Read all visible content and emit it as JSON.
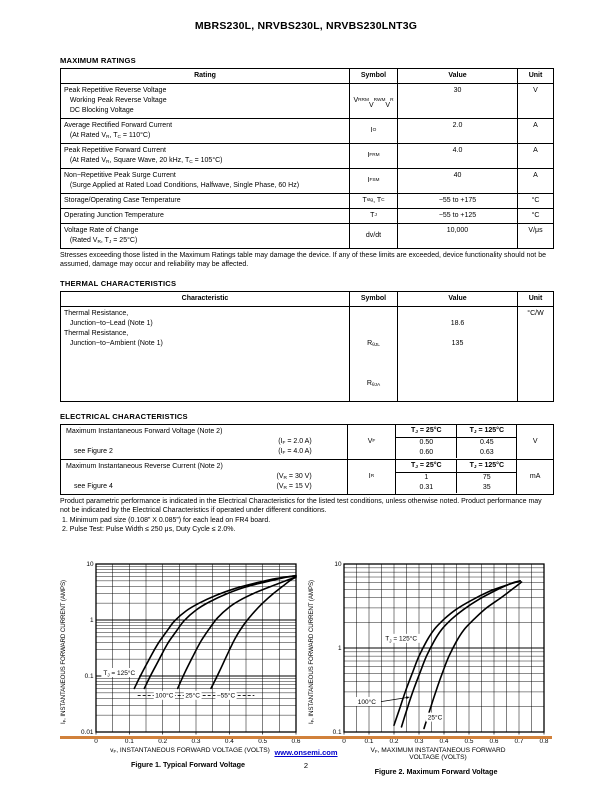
{
  "page": {
    "title": "MBRS230L, NRVBS230L, NRVBS230LNT3G"
  },
  "colors": {
    "footer_rule": "#d1813b",
    "link": "#0000cc"
  },
  "sections": {
    "max_ratings": {
      "heading": "MAXIMUM RATINGS",
      "headers": [
        "Rating",
        "Symbol",
        "Value",
        "Unit"
      ],
      "rows": [
        {
          "rating": "Peak Repetitive Reverse Voltage\n   Working Peak Reverse Voltage\n   DC Blocking Voltage",
          "symbol": "V~RRM~\nV~RWM~\nV~R~",
          "value": "30",
          "unit": "V"
        },
        {
          "rating": "Average Rectified Forward Current\n   (At Rated V~R~, T~C~ = 110°C)",
          "symbol": "I~O~",
          "value": "2.0",
          "unit": "A"
        },
        {
          "rating": "Peak Repetitive Forward Current\n   (At Rated V~R~, Square Wave, 20 kHz, T~C~ = 105°C)",
          "symbol": "I~FRM~",
          "value": "4.0",
          "unit": "A"
        },
        {
          "rating": "Non−Repetitive Peak Surge Current\n   (Surge Applied at Rated Load Conditions, Halfwave, Single Phase, 60 Hz)",
          "symbol": "I~FSM~",
          "value": "40",
          "unit": "A"
        },
        {
          "rating": "Storage/Operating Case Temperature",
          "symbol": "T~stg~, T~C~",
          "value": "−55 to +175",
          "unit": "°C"
        },
        {
          "rating": "Operating Junction Temperature",
          "symbol": "T~J~",
          "value": "−55 to +125",
          "unit": "°C"
        },
        {
          "rating": "Voltage Rate of Change\n   (Rated V~R~, T~J~ = 25°C)",
          "symbol": "dv/dt",
          "value": "10,000",
          "unit": "V/μs"
        }
      ],
      "stress_note": "Stresses exceeding those listed in the Maximum Ratings table may damage the device. If any of these limits are exceeded, device functionality should not be assumed, damage may occur and reliability may be affected."
    },
    "thermal": {
      "heading": "THERMAL CHARACTERISTICS",
      "headers": [
        "Characteristic",
        "Symbol",
        "Value",
        "Unit"
      ],
      "char_lines": [
        "Thermal Resistance,",
        "   Junction−to−Lead (Note 1)",
        "Thermal Resistance,",
        "   Junction−to−Ambient (Note 1)"
      ],
      "sym_lines": [
        "",
        "R~θJL~",
        "",
        "R~θJA~"
      ],
      "val_lines": [
        "",
        "18.6",
        "",
        "135"
      ],
      "unit_lines": [
        "°C/W",
        "",
        "",
        ""
      ]
    },
    "electrical": {
      "heading": "ELECTRICAL CHARACTERISTICS",
      "temp_headers": [
        "T~J~ = 25°C",
        "T~J~ = 125°C"
      ],
      "groups": [
        {
          "title": "Maximum Instantaneous Forward Voltage (Note 2)",
          "see": "see Figure 2",
          "conditions": [
            "(I~F~ = 2.0 A)",
            "(I~F~ = 4.0 A)"
          ],
          "symbol": "V~F~",
          "values": [
            [
              "0.50",
              "0.45"
            ],
            [
              "0.60",
              "0.63"
            ]
          ],
          "unit": "V"
        },
        {
          "title": "Maximum Instantaneous Reverse Current (Note 2)",
          "see": "see Figure 4",
          "conditions": [
            "(V~R~ = 30 V)",
            "(V~R~ = 15 V)"
          ],
          "symbol": "I~R~",
          "values": [
            [
              "1",
              "75"
            ],
            [
              "0.31",
              "35"
            ]
          ],
          "unit": "mA"
        }
      ],
      "footnote": "Product parametric performance is indicated in the Electrical Characteristics for the listed test conditions, unless otherwise noted. Product performance may not be indicated by the Electrical Characteristics if operated under different conditions.",
      "notes": [
        "1.  Minimum pad size (0.108” X 0.085”) for each lead on FR4 board.",
        "2.  Pulse Test: Pulse Width ≤ 250 μs, Duty Cycle ≤ 2.0%."
      ]
    }
  },
  "chart_data": [
    {
      "type": "line",
      "caption": "Figure 1. Typical Forward Voltage",
      "xlabel": "v~F~, INSTANTANEOUS FORWARD VOLTAGE (VOLTS)",
      "ylabel": "I~F~, INSTANTANEOUS FORWARD CURRENT (AMPS)",
      "xlim": [
        0,
        0.6
      ],
      "ylim": [
        0.01,
        10
      ],
      "ylog": true,
      "xgrid_step": 0.05,
      "xticks": [
        0,
        0.1,
        0.2,
        0.3,
        0.4,
        0.5,
        0.6
      ],
      "series": [
        {
          "name": "T~J~ = 125°C",
          "points": [
            [
              0.115,
              0.06
            ],
            [
              0.135,
              0.105
            ],
            [
              0.16,
              0.2
            ],
            [
              0.185,
              0.37
            ],
            [
              0.21,
              0.6
            ],
            [
              0.235,
              0.95
            ],
            [
              0.27,
              1.45
            ],
            [
              0.31,
              2.0
            ],
            [
              0.36,
              2.75
            ],
            [
              0.42,
              3.7
            ],
            [
              0.48,
              4.6
            ],
            [
              0.54,
              5.5
            ],
            [
              0.6,
              6.2
            ]
          ]
        },
        {
          "name": "100°C",
          "points": [
            [
              0.145,
              0.06
            ],
            [
              0.165,
              0.105
            ],
            [
              0.19,
              0.2
            ],
            [
              0.215,
              0.38
            ],
            [
              0.24,
              0.62
            ],
            [
              0.265,
              0.98
            ],
            [
              0.3,
              1.5
            ],
            [
              0.34,
              2.1
            ],
            [
              0.39,
              2.9
            ],
            [
              0.45,
              3.9
            ],
            [
              0.51,
              4.8
            ],
            [
              0.57,
              5.8
            ],
            [
              0.6,
              6.1
            ]
          ]
        },
        {
          "name": "25°C",
          "points": [
            [
              0.245,
              0.06
            ],
            [
              0.265,
              0.11
            ],
            [
              0.29,
              0.22
            ],
            [
              0.315,
              0.42
            ],
            [
              0.34,
              0.7
            ],
            [
              0.365,
              1.1
            ],
            [
              0.4,
              1.7
            ],
            [
              0.44,
              2.4
            ],
            [
              0.49,
              3.3
            ],
            [
              0.54,
              4.3
            ],
            [
              0.58,
              5.3
            ],
            [
              0.6,
              5.9
            ]
          ]
        },
        {
          "name": "−55°C",
          "points": [
            [
              0.345,
              0.06
            ],
            [
              0.37,
              0.12
            ],
            [
              0.395,
              0.25
            ],
            [
              0.42,
              0.5
            ],
            [
              0.445,
              0.85
            ],
            [
              0.47,
              1.3
            ],
            [
              0.5,
              2.0
            ],
            [
              0.53,
              2.9
            ],
            [
              0.56,
              4.0
            ],
            [
              0.585,
              5.2
            ],
            [
              0.6,
              5.8
            ]
          ]
        }
      ],
      "annotations": [
        {
          "text": "T~J~ = 125°C",
          "x": 0.022,
          "y": 0.115,
          "anchor": "start"
        },
        {
          "text": "100°C",
          "x": 0.205,
          "y": 0.045,
          "anchor": "middle"
        },
        {
          "text": "25°C",
          "x": 0.29,
          "y": 0.045,
          "anchor": "middle"
        },
        {
          "text": "−55°C",
          "x": 0.39,
          "y": 0.045,
          "anchor": "middle"
        }
      ],
      "dashed_lines": [
        {
          "x1": 0.125,
          "x2": 0.475,
          "y": 0.045
        }
      ]
    },
    {
      "type": "line",
      "caption": "Figure 2. Maximum Forward Voltage",
      "xlabel": "V~F~, MAXIMUM INSTANTANEOUS FORWARD\nVOLTAGE (VOLTS)",
      "ylabel": "I~F~, INSTANTANEOUS FORWARD CURRENT (AMPS)",
      "xlim": [
        0,
        0.8
      ],
      "ylim": [
        0.1,
        10
      ],
      "ylog": true,
      "xgrid_step": 0.05,
      "xticks": [
        0,
        0.1,
        0.2,
        0.3,
        0.4,
        0.5,
        0.6,
        0.7,
        0.8
      ],
      "series": [
        {
          "name": "T~J~ = 125°C",
          "points": [
            [
              0.2,
              0.12
            ],
            [
              0.225,
              0.2
            ],
            [
              0.25,
              0.33
            ],
            [
              0.275,
              0.52
            ],
            [
              0.3,
              0.8
            ],
            [
              0.33,
              1.2
            ],
            [
              0.36,
              1.65
            ],
            [
              0.4,
              2.2
            ],
            [
              0.45,
              2.9
            ],
            [
              0.51,
              3.7
            ],
            [
              0.58,
              4.7
            ],
            [
              0.65,
              5.6
            ],
            [
              0.705,
              6.3
            ]
          ]
        },
        {
          "name": "100°C",
          "points": [
            [
              0.23,
              0.115
            ],
            [
              0.255,
              0.2
            ],
            [
              0.28,
              0.33
            ],
            [
              0.305,
              0.52
            ],
            [
              0.33,
              0.8
            ],
            [
              0.36,
              1.2
            ],
            [
              0.39,
              1.65
            ],
            [
              0.43,
              2.2
            ],
            [
              0.48,
              2.9
            ],
            [
              0.54,
              3.8
            ],
            [
              0.61,
              4.9
            ],
            [
              0.67,
              5.9
            ],
            [
              0.705,
              6.3
            ]
          ]
        },
        {
          "name": "25°C",
          "points": [
            [
              0.32,
              0.11
            ],
            [
              0.345,
              0.19
            ],
            [
              0.37,
              0.32
            ],
            [
              0.395,
              0.52
            ],
            [
              0.42,
              0.8
            ],
            [
              0.45,
              1.2
            ],
            [
              0.48,
              1.65
            ],
            [
              0.52,
              2.2
            ],
            [
              0.57,
              3.0
            ],
            [
              0.63,
              4.0
            ],
            [
              0.68,
              5.2
            ],
            [
              0.71,
              6.1
            ]
          ]
        }
      ],
      "annotations": [
        {
          "text": "T~J~ = 125°C",
          "x": 0.165,
          "y": 1.3,
          "anchor": "start"
        },
        {
          "text": "100°C",
          "x": 0.055,
          "y": 0.23,
          "anchor": "start",
          "arrow": {
            "x1": 0.148,
            "y1": 0.23,
            "x2": 0.262,
            "y2": 0.26
          }
        },
        {
          "text": "25°C",
          "x": 0.335,
          "y": 0.15,
          "anchor": "start"
        }
      ],
      "dashed_lines": []
    }
  ],
  "footer": {
    "link": "www.onsemi.com",
    "page_number": "2"
  }
}
